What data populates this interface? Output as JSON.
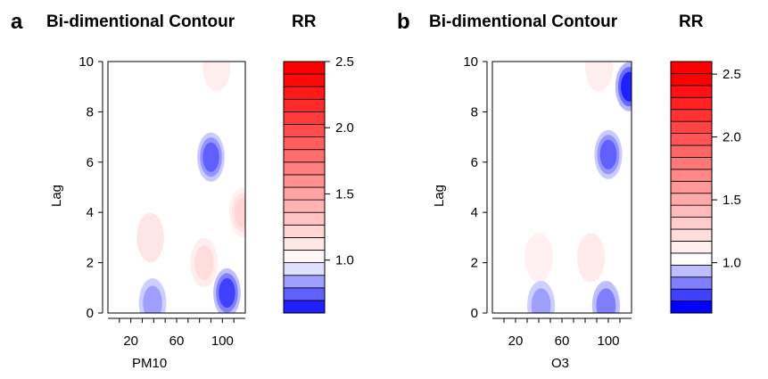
{
  "chart_data": [
    {
      "type": "heatmap",
      "panel_label": "a",
      "title": "Bi-dimentional Contour",
      "legend_title": "RR",
      "xlabel": "PM10",
      "ylabel": "Lag",
      "xlim": [
        0,
        120
      ],
      "ylim": [
        0,
        10
      ],
      "x_ticks": [
        20,
        60,
        100
      ],
      "y_ticks": [
        0,
        2,
        4,
        6,
        8,
        10
      ],
      "colorbar": {
        "ticks": [
          "1.0",
          "1.5",
          "2.0",
          "2.5"
        ],
        "tick_values": [
          1.0,
          1.5,
          2.0,
          2.5
        ],
        "levels": [
          0.65,
          0.75,
          0.85,
          0.95,
          1.05,
          1.15,
          1.25,
          1.35,
          1.45,
          1.55,
          1.65,
          1.75,
          1.85,
          1.95,
          2.05,
          2.15,
          2.25,
          2.35,
          2.45,
          2.55
        ],
        "range": [
          0.6,
          2.5
        ]
      },
      "features": [
        {
          "x": 37,
          "y": 3.0,
          "rr": 1.15
        },
        {
          "x": 84,
          "y": 2.0,
          "rr": 1.2
        },
        {
          "x": 90,
          "y": 6.2,
          "rr": 0.75
        },
        {
          "x": 104,
          "y": 0.8,
          "rr": 0.7
        },
        {
          "x": 39,
          "y": 0.4,
          "rr": 0.85
        },
        {
          "x": 95,
          "y": 9.8,
          "rr": 1.1
        },
        {
          "x": 118,
          "y": 4.0,
          "rr": 1.25
        }
      ]
    },
    {
      "type": "heatmap",
      "panel_label": "b",
      "title": "Bi-dimentional Contour",
      "legend_title": "RR",
      "xlabel": "O3",
      "ylabel": "Lag",
      "xlim": [
        0,
        120
      ],
      "ylim": [
        0,
        10
      ],
      "x_ticks": [
        20,
        60,
        100
      ],
      "y_ticks": [
        0,
        2,
        4,
        6,
        8,
        10
      ],
      "colorbar": {
        "ticks": [
          "1.0",
          "1.5",
          "2.0",
          "2.5"
        ],
        "tick_values": [
          1.0,
          1.5,
          2.0,
          2.5
        ],
        "levels": [
          0.6,
          0.7,
          0.8,
          0.9,
          1.0,
          1.1,
          1.2,
          1.3,
          1.4,
          1.5,
          1.6,
          1.7,
          1.8,
          1.9,
          2.0,
          2.1,
          2.2,
          2.3,
          2.4,
          2.5,
          2.6
        ],
        "range": [
          0.6,
          2.6
        ]
      },
      "features": [
        {
          "x": 40,
          "y": 2.2,
          "rr": 1.08
        },
        {
          "x": 85,
          "y": 2.2,
          "rr": 1.12
        },
        {
          "x": 100,
          "y": 6.3,
          "rr": 0.75
        },
        {
          "x": 118,
          "y": 9.0,
          "rr": 0.65
        },
        {
          "x": 42,
          "y": 0.3,
          "rr": 0.85
        },
        {
          "x": 98,
          "y": 0.3,
          "rr": 0.8
        },
        {
          "x": 92,
          "y": 9.8,
          "rr": 1.1
        }
      ]
    }
  ]
}
